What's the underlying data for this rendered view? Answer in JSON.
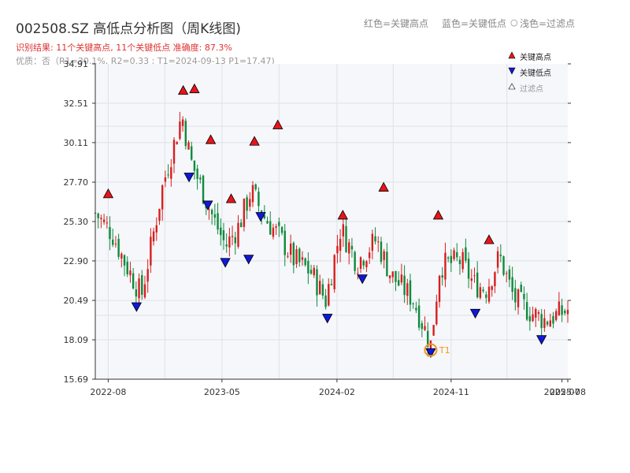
{
  "header": {
    "title": "002508.SZ 高低点分析图（周K线图)",
    "result_line": "识别结果: 11个关键高点, 11个关键低点   准确度: 87.3%",
    "quality_line": "优质：否（R1=30.1%, R2=0.33 ; T1=2024-09-13 P1=17.47)"
  },
  "top_legend": {
    "red": "红色=关键高点",
    "blue": "蓝色=关键低点",
    "hollow": "浅色=过滤点"
  },
  "legend": {
    "high": "关键高点",
    "low": "关键低点",
    "filtered": "过滤点"
  },
  "colors": {
    "up": "#d81e1e",
    "down": "#0f8a3c",
    "high_marker": "#e8141b",
    "low_marker": "#1018d8",
    "t1_ring": "#f5961e",
    "plot_bg": "#f5f7fa",
    "grid": "#dde2ea"
  },
  "chart_data": {
    "type": "candlestick",
    "x_axis": {
      "type": "date",
      "start": "2022-07-01",
      "end": "2025-08-08",
      "tick_labels": [
        "2022-08",
        "2023-05",
        "2024-02",
        "2024-11",
        "2025-07",
        "2025-08"
      ],
      "tick_dates": [
        "2022-08-01",
        "2023-05-01",
        "2024-02-01",
        "2024-11-01",
        "2025-07-25",
        "2025-08-08"
      ]
    },
    "y_axis": {
      "min": 15.69,
      "max": 34.91,
      "ticks": [
        15.69,
        18.09,
        20.49,
        22.9,
        25.3,
        27.7,
        30.11,
        32.51,
        34.91
      ],
      "tick_labels": [
        "15.69",
        "18.09",
        "20.49",
        "22.90",
        "25.30",
        "27.70",
        "30.11",
        "32.51",
        "34.91"
      ]
    },
    "close_path": [
      [
        "2022-07-01",
        25.8
      ],
      [
        "2022-08-10",
        24.6
      ],
      [
        "2022-09-10",
        22.8
      ],
      [
        "2022-10-20",
        20.8
      ],
      [
        "2022-12-10",
        27.5
      ],
      [
        "2023-01-25",
        31.8
      ],
      [
        "2023-02-15",
        29.0
      ],
      [
        "2023-03-15",
        27.2
      ],
      [
        "2023-04-10",
        25.5
      ],
      [
        "2023-05-10",
        23.8
      ],
      [
        "2023-06-10",
        25.0
      ],
      [
        "2023-07-10",
        27.2
      ],
      [
        "2023-08-10",
        25.6
      ],
      [
        "2023-09-15",
        24.4
      ],
      [
        "2023-10-20",
        23.0
      ],
      [
        "2023-12-01",
        22.2
      ],
      [
        "2024-01-05",
        20.5
      ],
      [
        "2024-02-10",
        24.9
      ],
      [
        "2024-03-20",
        22.8
      ],
      [
        "2024-05-05",
        24.2
      ],
      [
        "2024-06-10",
        22.0
      ],
      [
        "2024-08-01",
        20.6
      ],
      [
        "2024-09-13",
        17.8
      ],
      [
        "2024-10-05",
        22.6
      ],
      [
        "2024-11-25",
        22.9
      ],
      [
        "2024-12-25",
        21.5
      ],
      [
        "2025-01-25",
        21.2
      ],
      [
        "2025-02-25",
        23.2
      ],
      [
        "2025-04-01",
        20.6
      ],
      [
        "2025-05-15",
        19.7
      ],
      [
        "2025-06-15",
        19.3
      ],
      [
        "2025-08-08",
        19.9
      ]
    ],
    "key_highs": [
      {
        "date": "2022-08-01",
        "price": 26.7
      },
      {
        "date": "2023-01-28",
        "price": 33.0
      },
      {
        "date": "2023-02-24",
        "price": 33.1
      },
      {
        "date": "2023-04-04",
        "price": 30.0
      },
      {
        "date": "2023-05-23",
        "price": 26.4
      },
      {
        "date": "2023-07-18",
        "price": 29.9
      },
      {
        "date": "2023-09-12",
        "price": 30.9
      },
      {
        "date": "2024-02-15",
        "price": 25.4
      },
      {
        "date": "2024-05-23",
        "price": 27.1
      },
      {
        "date": "2024-10-01",
        "price": 25.4
      },
      {
        "date": "2025-01-31",
        "price": 23.9
      }
    ],
    "key_lows": [
      {
        "date": "2022-10-08",
        "price": 20.4
      },
      {
        "date": "2023-02-11",
        "price": 28.3
      },
      {
        "date": "2023-03-28",
        "price": 26.6
      },
      {
        "date": "2023-05-09",
        "price": 23.1
      },
      {
        "date": "2023-07-04",
        "price": 23.3
      },
      {
        "date": "2023-08-02",
        "price": 25.9
      },
      {
        "date": "2024-01-09",
        "price": 19.7
      },
      {
        "date": "2024-04-02",
        "price": 22.1
      },
      {
        "date": "2024-09-13",
        "price": 17.6
      },
      {
        "date": "2024-12-29",
        "price": 20.0
      },
      {
        "date": "2025-06-06",
        "price": 18.4
      }
    ],
    "t1": {
      "label": "T1",
      "date": "2024-09-13",
      "price": 17.47
    }
  }
}
